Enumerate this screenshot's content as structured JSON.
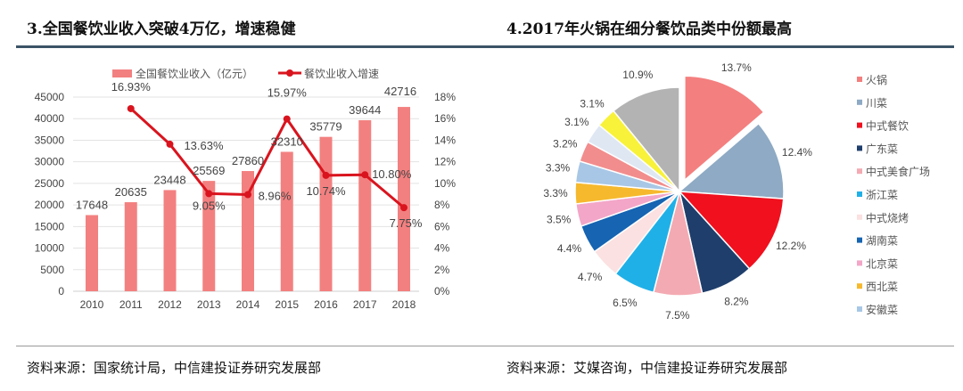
{
  "left": {
    "title": "3.全国餐饮业收入突破4万亿，增速稳健",
    "source": "资料来源：国家统计局，中信建投证券研究发展部"
  },
  "right": {
    "title": "4.2017年火锅在细分餐饮品类中份额最高",
    "source": "资料来源：艾媒咨询，中信建投证券研究发展部"
  },
  "chart_data": [
    {
      "type": "bar+line",
      "categories": [
        "2010",
        "2011",
        "2012",
        "2013",
        "2014",
        "2015",
        "2016",
        "2017",
        "2018"
      ],
      "series": [
        {
          "name": "全国餐饮业收入（亿元）",
          "type": "bar",
          "axis": "left",
          "color": "#f38080",
          "values": [
            17648,
            20635,
            23448,
            25569,
            27860,
            32310,
            35779,
            39644,
            42716
          ],
          "labels": [
            "17648",
            "20635",
            "23448",
            "25569",
            "27860",
            "32310",
            "35779",
            "39644",
            "42716"
          ]
        },
        {
          "name": "餐饮业收入增速",
          "type": "line",
          "axis": "right",
          "color": "#d9141e",
          "values": [
            null,
            16.93,
            13.63,
            9.05,
            8.96,
            15.97,
            10.74,
            10.8,
            7.75
          ],
          "labels": [
            "",
            "16.93%",
            "13.63%",
            "9.05%",
            "8.96%",
            "15.97%",
            "10.74%",
            "10.80%",
            "7.75%"
          ]
        }
      ],
      "ylim_left": [
        0,
        45000
      ],
      "yticks_left": [
        "0",
        "5000",
        "10000",
        "15000",
        "20000",
        "25000",
        "30000",
        "35000",
        "40000",
        "45000"
      ],
      "ylim_right": [
        0,
        18
      ],
      "yticks_right": [
        "0%",
        "2%",
        "4%",
        "6%",
        "8%",
        "10%",
        "12%",
        "14%",
        "16%",
        "18%"
      ],
      "grid": true,
      "legend": "top"
    },
    {
      "type": "pie",
      "slices": [
        {
          "name": "火锅",
          "value": 13.7,
          "label": "13.7%",
          "color": "#f47f7f",
          "exploded": true
        },
        {
          "name": "川菜",
          "value": 12.4,
          "label": "12.4%",
          "color": "#8eaac4"
        },
        {
          "name": "中式餐饮",
          "value": 12.2,
          "label": "12.2%",
          "color": "#f0101e"
        },
        {
          "name": "广东菜",
          "value": 8.2,
          "label": "8.2%",
          "color": "#1f3e6c"
        },
        {
          "name": "中式美食广场",
          "value": 7.5,
          "label": "7.5%",
          "color": "#f4aab2"
        },
        {
          "name": "浙江菜",
          "value": 6.5,
          "label": "6.5%",
          "color": "#20b0e8"
        },
        {
          "name": "中式烧烤",
          "value": 4.7,
          "label": "4.7%",
          "color": "#fbe1e1"
        },
        {
          "name": "湖南菜",
          "value": 4.4,
          "label": "4.4%",
          "color": "#1664b2"
        },
        {
          "name": "北京菜",
          "value": 3.5,
          "label": "3.5%",
          "color": "#f3a6c8"
        },
        {
          "name": "西北菜",
          "value": 3.3,
          "label": "3.3%",
          "color": "#f6b92e"
        },
        {
          "name": "安徽菜",
          "value": 3.3,
          "label": "3.3%",
          "color": "#a8c7e6"
        },
        {
          "name": "",
          "value": 3.2,
          "label": "3.2%",
          "color": "#f28d8d"
        },
        {
          "name": "",
          "value": 3.1,
          "label": "3.1%",
          "color": "#dfe7f3"
        },
        {
          "name": "",
          "value": 3.1,
          "label": "3.1%",
          "color": "#f8f23a"
        },
        {
          "name": "",
          "value": 10.9,
          "label": "10.9%",
          "color": "#b3b3b3"
        }
      ],
      "legend": "right"
    }
  ]
}
